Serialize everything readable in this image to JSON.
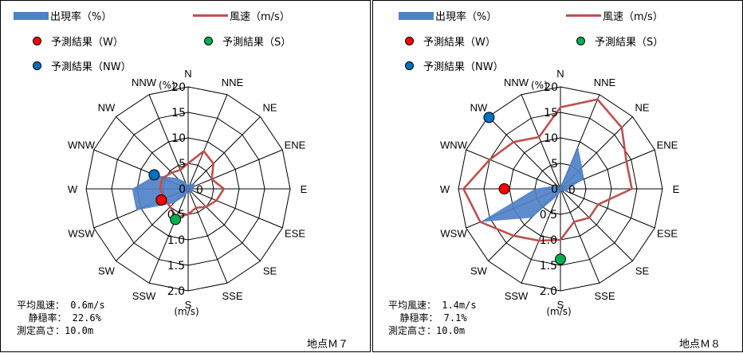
{
  "legend": {
    "freq": "出現率（%）",
    "speed": "風速（m/s）",
    "pred_w": "予測結果（W）",
    "pred_s": "予測結果（S）",
    "pred_nw": "予測結果（NW）"
  },
  "colors": {
    "freq": "#4f81c8",
    "speed": "#c0504d",
    "pred_w": "#ff0000",
    "pred_s": "#00b050",
    "pred_nw": "#0070c0"
  },
  "directions": [
    "N",
    "NNE",
    "NE",
    "ENE",
    "E",
    "ESE",
    "SE",
    "SSE",
    "S",
    "SSW",
    "SW",
    "WSW",
    "W",
    "WNW",
    "NW",
    "NNW"
  ],
  "freq_ticks": [
    "0",
    "5",
    "10",
    "15",
    "20"
  ],
  "freq_unit": "(%)",
  "speed_ticks": [
    "0",
    "0.5",
    "1.0",
    "1.5",
    "2.0"
  ],
  "speed_unit": "(m/s)",
  "chart_data": [
    {
      "type": "radar",
      "station": "地点Ｍ７",
      "info": {
        "avg_speed": "平均風速： 0.6m/s",
        "calm_rate": "  静穏率： 22.6%",
        "height": "測定高さ：10.0m"
      },
      "freq_max": 20,
      "speed_max": 2.0,
      "series": [
        {
          "name": "出現率（%）",
          "values": [
            0.5,
            1.0,
            1.5,
            1.5,
            1.0,
            1.0,
            1.0,
            1.0,
            0.5,
            1.5,
            4.0,
            11.0,
            11.0,
            7.0,
            3.0,
            1.5
          ]
        },
        {
          "name": "風速（m/s）",
          "values": [
            0.5,
            0.8,
            0.7,
            0.5,
            0.7,
            0.6,
            0.5,
            0.4,
            0.5,
            0.6,
            0.5,
            0.5,
            0.55,
            0.55,
            0.45,
            0.4
          ]
        }
      ],
      "predictions": [
        {
          "name": "予測結果（W）",
          "direction": "WSW",
          "speed": 0.57
        },
        {
          "name": "予測結果（S）",
          "direction": "SSW",
          "speed": 0.65
        },
        {
          "name": "予測結果（NW）",
          "direction": "WNW",
          "speed": 0.72
        }
      ]
    },
    {
      "type": "radar",
      "station": "地点Ｍ８",
      "info": {
        "avg_speed": "平均風速： 1.4m/s",
        "calm_rate": "  静穏率： 7.1%",
        "height": "測定高さ：10.0m"
      },
      "freq_max": 20,
      "speed_max": 2.0,
      "series": [
        {
          "name": "出現率（%）",
          "values": [
            0.5,
            9.0,
            6.0,
            5.0,
            1.5,
            1.5,
            0.5,
            0.5,
            0.5,
            1.5,
            8.0,
            17.0,
            5.0,
            1.5,
            0.5,
            0.5
          ]
        },
        {
          "name": "風速（m/s）",
          "values": [
            1.6,
            1.9,
            1.7,
            1.4,
            1.4,
            0.8,
            0.8,
            0.7,
            1.0,
            1.1,
            1.3,
            1.7,
            1.9,
            1.5,
            1.3,
            1.1
          ]
        }
      ],
      "predictions": [
        {
          "name": "予測結果（W）",
          "direction": "W",
          "speed": 1.1
        },
        {
          "name": "予測結果（S）",
          "direction": "S",
          "speed": 1.38
        },
        {
          "name": "予測結果（NW）",
          "direction": "NW",
          "speed": 1.98
        }
      ]
    }
  ]
}
